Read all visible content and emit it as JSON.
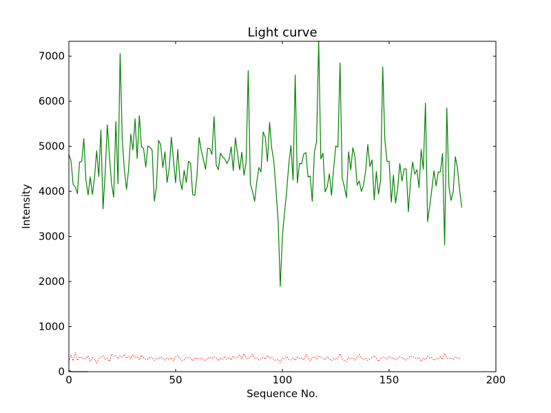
{
  "chart_data": {
    "type": "line",
    "title": "Light curve",
    "xlabel": "Sequence No.",
    "ylabel": "Intensity",
    "xlim": [
      0,
      200
    ],
    "ylim": [
      0,
      7330
    ],
    "grid": false,
    "x_ticks": [
      0,
      50,
      100,
      150,
      200
    ],
    "y_ticks": [
      0,
      1000,
      2000,
      3000,
      4000,
      5000,
      6000,
      7000
    ],
    "x_tick_labels": [
      "0",
      "50",
      "100",
      "150",
      "200"
    ],
    "y_tick_labels": [
      "0",
      "1000",
      "2000",
      "3000",
      "4000",
      "5000",
      "6000",
      "7000"
    ],
    "series": [
      {
        "color": "#008000",
        "style": "solid",
        "values": [
          4820,
          4680,
          4150,
          4100,
          3950,
          4650,
          4660,
          5170,
          4250,
          3920,
          4320,
          3930,
          4300,
          4900,
          4330,
          5360,
          3610,
          4410,
          5480,
          4780,
          4170,
          3870,
          5550,
          4170,
          7060,
          5160,
          4470,
          4050,
          4500,
          5270,
          4920,
          5610,
          4730,
          5680,
          4990,
          4950,
          4540,
          5010,
          4980,
          4910,
          3780,
          4100,
          5130,
          5040,
          4530,
          4880,
          4200,
          4510,
          5200,
          4680,
          4190,
          4930,
          4250,
          4040,
          4470,
          4200,
          4670,
          4620,
          3930,
          3910,
          4350,
          5200,
          4910,
          4710,
          4490,
          4960,
          4950,
          4820,
          5660,
          4590,
          4480,
          4850,
          4770,
          4720,
          4620,
          4710,
          4990,
          4460,
          5190,
          4830,
          4480,
          4870,
          4360,
          4640,
          6680,
          4170,
          4000,
          3780,
          4210,
          4530,
          4430,
          5320,
          5200,
          4660,
          5530,
          4960,
          4670,
          4030,
          3370,
          1890,
          3000,
          3530,
          4000,
          4600,
          5020,
          4250,
          6580,
          4190,
          4620,
          4610,
          4830,
          4860,
          4320,
          4340,
          3780,
          4880,
          5100,
          7340,
          4720,
          4850,
          3990,
          4100,
          4390,
          3910,
          4500,
          5010,
          4980,
          6850,
          4290,
          4110,
          3860,
          4880,
          4480,
          4970,
          4770,
          4140,
          4230,
          4000,
          4140,
          4460,
          5040,
          4550,
          4700,
          3810,
          4440,
          3940,
          4240,
          6760,
          5130,
          4660,
          4670,
          3760,
          4360,
          3740,
          4070,
          4620,
          4230,
          4500,
          4500,
          3550,
          4220,
          4650,
          4380,
          4480,
          4080,
          4930,
          4490,
          5960,
          3330,
          3670,
          4050,
          4460,
          4120,
          4430,
          4430,
          4840,
          2810,
          5850,
          4100,
          3800,
          3990,
          4770,
          4520,
          4040,
          3640
        ]
      },
      {
        "color": "#ff0000",
        "style": "dotted",
        "values": [
          220,
          370,
          240,
          420,
          250,
          330,
          310,
          280,
          290,
          350,
          230,
          310,
          270,
          200,
          290,
          320,
          350,
          270,
          300,
          230,
          390,
          340,
          360,
          290,
          350,
          320,
          380,
          300,
          350,
          290,
          380,
          320,
          330,
          260,
          370,
          300,
          280,
          270,
          330,
          310,
          250,
          300,
          280,
          330,
          290,
          260,
          300,
          270,
          310,
          240,
          330,
          360,
          290,
          250,
          260,
          320,
          310,
          300,
          240,
          310,
          280,
          300,
          290,
          270,
          250,
          300,
          320,
          290,
          330,
          310,
          240,
          300,
          270,
          340,
          280,
          310,
          260,
          350,
          300,
          310,
          380,
          290,
          400,
          310,
          290,
          320,
          380,
          300,
          310,
          260,
          290,
          320,
          280,
          360,
          300,
          330,
          270,
          250,
          280,
          210,
          310,
          290,
          340,
          270,
          260,
          300,
          250,
          320,
          290,
          300,
          260,
          380,
          300,
          240,
          310,
          330,
          290,
          350,
          320,
          300,
          260,
          330,
          290,
          240,
          300,
          270,
          310,
          400,
          280,
          250,
          230,
          310,
          290,
          300,
          260,
          320,
          380,
          310,
          270,
          300,
          250,
          280,
          320,
          350,
          300,
          230,
          290,
          320,
          310,
          280,
          340,
          300,
          300,
          260,
          290,
          330,
          310,
          280,
          260,
          300,
          350,
          330,
          310,
          290,
          320,
          230,
          300,
          270,
          340,
          300,
          310,
          250,
          290,
          280,
          330,
          270,
          410,
          300,
          290,
          310,
          270,
          330,
          300,
          300
        ]
      },
      {
        "color": "#0000ff",
        "style": "solid",
        "values": [
          30,
          5,
          0,
          0,
          0,
          0,
          0,
          0,
          0,
          0
        ]
      }
    ]
  }
}
